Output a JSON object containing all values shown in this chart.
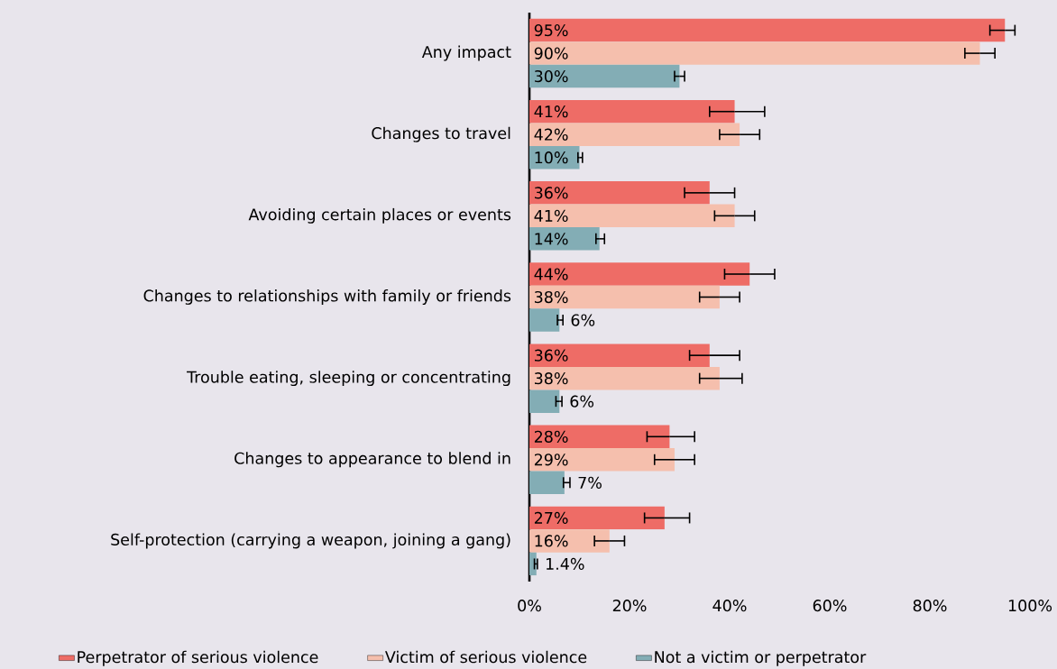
{
  "chart_data": {
    "type": "bar",
    "orientation": "horizontal",
    "categories": [
      "Any impact",
      "Changes to travel",
      "Avoiding certain places or events",
      "Changes to relationships with family or friends",
      "Trouble eating, sleeping or concentrating",
      "Changes to appearance to blend in",
      "Self-protection (carrying a weapon, joining a gang)"
    ],
    "series": [
      {
        "name": "Perpetrator of serious violence",
        "color": "#ee6c66",
        "values": [
          95,
          41,
          36,
          44,
          36,
          28,
          27
        ],
        "value_labels": [
          "95%",
          "41%",
          "36%",
          "44%",
          "36%",
          "28%",
          "27%"
        ],
        "errors": [
          [
            92,
            97
          ],
          [
            36,
            47
          ],
          [
            31,
            41
          ],
          [
            39,
            49
          ],
          [
            32,
            42
          ],
          [
            23.5,
            33
          ],
          [
            23,
            32
          ]
        ]
      },
      {
        "name": "Victim of serious violence",
        "color": "#f5bfad",
        "values": [
          90,
          42,
          41,
          38,
          38,
          29,
          16
        ],
        "value_labels": [
          "90%",
          "42%",
          "41%",
          "38%",
          "38%",
          "29%",
          "16%"
        ],
        "errors": [
          [
            87,
            93
          ],
          [
            38,
            46
          ],
          [
            37,
            45
          ],
          [
            34,
            42
          ],
          [
            34,
            42.5
          ],
          [
            25,
            33
          ],
          [
            13,
            19
          ]
        ]
      },
      {
        "name": "Not a victim or perpetrator",
        "color": "#83adb5",
        "values": [
          30,
          10,
          14,
          6,
          6,
          7,
          1.4
        ],
        "value_labels": [
          "30%",
          "10%",
          "14%",
          "6%",
          "6%",
          "7%",
          "1.4%"
        ],
        "errors": [
          [
            29,
            31
          ],
          [
            9.7,
            10.6
          ],
          [
            13.3,
            15
          ],
          [
            5.6,
            6.7
          ],
          [
            5.3,
            6.5
          ],
          [
            6.8,
            8.1
          ],
          [
            1,
            1.6
          ]
        ]
      }
    ],
    "xlim": [
      0,
      100
    ],
    "xticks": [
      {
        "value": 0,
        "label": "0%"
      },
      {
        "value": 20,
        "label": "20%"
      },
      {
        "value": 40,
        "label": "40%"
      },
      {
        "value": 60,
        "label": "60%"
      },
      {
        "value": 80,
        "label": "80%"
      },
      {
        "value": 100,
        "label": "100%"
      }
    ],
    "grid": false,
    "legend": "bottom"
  }
}
